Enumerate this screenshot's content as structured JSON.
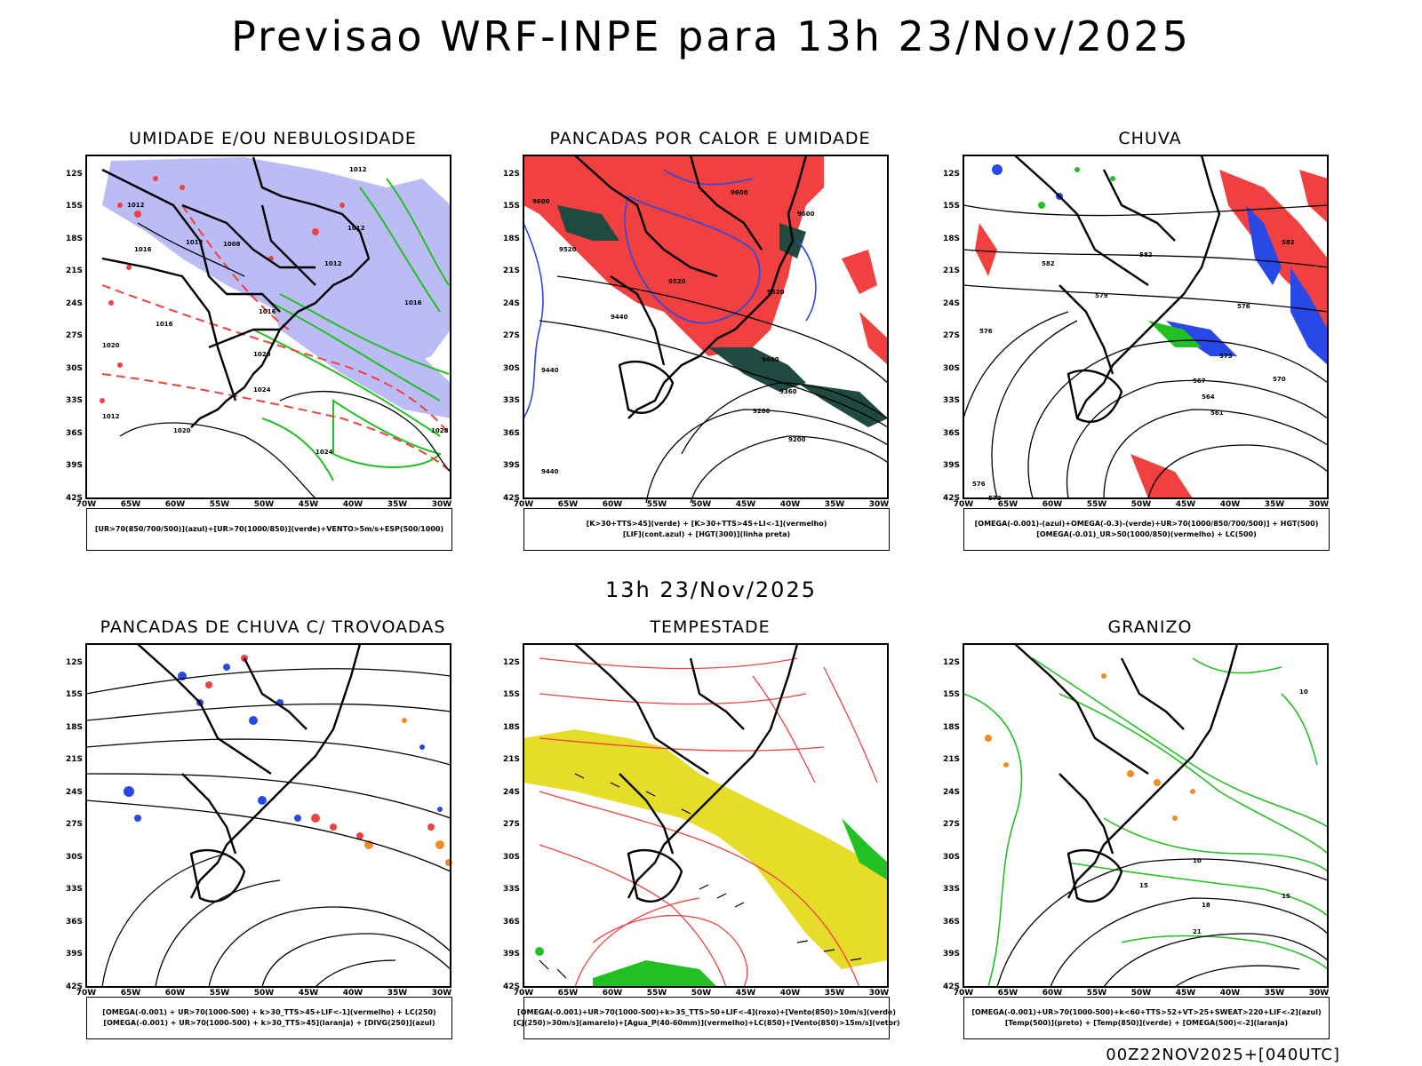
{
  "title": "Previsao WRF-INPE  para 13h 23/Nov/2025",
  "center_date": "13h 23/Nov/2025",
  "footer": "00Z22NOV2025+[040UTC]",
  "lat_labels": [
    "12S",
    "15S",
    "18S",
    "21S",
    "24S",
    "27S",
    "30S",
    "33S",
    "36S",
    "39S",
    "42S"
  ],
  "lon_labels": [
    "70W",
    "65W",
    "60W",
    "55W",
    "50W",
    "45W",
    "40W",
    "35W",
    "30W"
  ],
  "colors": {
    "red": "#f04040",
    "green": "#22c022",
    "blue": "#2848e8",
    "lavender": "#b4b4f4",
    "darkgreen": "#204a40",
    "yellow": "#e6dc2a",
    "orange": "#f08c28"
  },
  "panels": [
    {
      "title": "UMIDADE E/OU NEBULOSIDADE",
      "legend": [
        "[UR>70(850/700/500)](azul)+[UR>70(1000/850)](verde)+VENTO>5m/s+ESP(500/1000)"
      ],
      "contour_labels": [
        "1012",
        "1012",
        "1016",
        "1012",
        "1012",
        "1008",
        "1012",
        "1016",
        "1016",
        "1016",
        "1020",
        "1024",
        "1012",
        "1020",
        "1024",
        "1028",
        "1020"
      ]
    },
    {
      "title": "PANCADAS POR CALOR E UMIDADE",
      "legend": [
        "[K>30+TTS>45](verde) + [K>30+TTS>45+LI<-1](vermelho)",
        "[LIF](cont.azul) + [HGT(300)](linha preta)"
      ],
      "contour_labels": [
        "9600",
        "9520",
        "9600",
        "9600",
        "9520",
        "9440",
        "9440",
        "9520",
        "9440",
        "9360",
        "9280",
        "9200",
        "9440"
      ]
    },
    {
      "title": "CHUVA",
      "legend": [
        "[OMEGA(-0.001)-(azul)+OMEGA(-0.3)-(verde)+UR>70(1000/850/700/500)] + HGT(500)",
        "[OMEGA(-0.01)_UR>50(1000/850)(vermelho) + LC(500)"
      ],
      "contour_labels": [
        "582",
        "582",
        "582",
        "579",
        "576",
        "576",
        "573",
        "570",
        "567",
        "564",
        "561",
        "576",
        "573"
      ]
    },
    {
      "title": "PANCADAS DE CHUVA C/ TROVOADAS",
      "legend": [
        "[OMEGA(-0.001) + UR>70(1000-500) + k>30_TTS>45+LIF<-1](vermelho) + LC(250)",
        "[OMEGA(-0.001) + UR>70(1000-500) + k>30_TTS>45](laranja) + [DIVG(250)](azul)"
      ]
    },
    {
      "title": "TEMPESTADE",
      "legend": [
        "[OMEGA(-0.001)+UR>70(1000-500)+k>35_TTS>50+LIF<-4](roxo)+[Vento(850)>10m/s](verde)",
        "[CJ(250)>30m/s](amarelo)+[Agua_P(40-60mm)](vermelho)+LC(850)+[Vento(850)>15m/s](vetor)"
      ]
    },
    {
      "title": "GRANIZO",
      "legend": [
        "[OMEGA(-0.001)+UR>70(1000-500)+k<60+TTS>52+VT>25+SWEAT>220+LIF<-2](azul)",
        "[Temp(500)](preto) + [Temp(850)](verde) + [OMEGA(500)<-2](laranja)"
      ],
      "contour_labels": [
        "10",
        "15",
        "18",
        "21",
        "15",
        "10"
      ]
    }
  ]
}
